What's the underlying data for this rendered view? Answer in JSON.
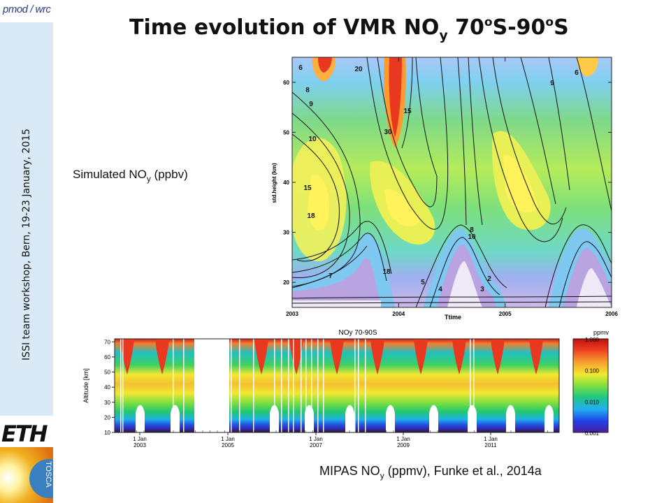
{
  "header": {
    "title_main": "Time evolution of VMR NO",
    "title_sub": "y",
    "title_after": " 70",
    "title_deg1": "o",
    "title_mid": "S-90",
    "title_deg2": "o",
    "title_end": "S"
  },
  "sidebar": {
    "logo_text": "pmod / wrc",
    "vertical_text": "ISSI team workshop, Bern, 19-23  January, 2015",
    "eth_logo": "ETH",
    "tosca_logo": "TOSCA"
  },
  "labels": {
    "simulated_main": "Simulated NO",
    "simulated_sub": "y",
    "simulated_end": " (ppbv)",
    "mipas_main": "MIPAS NO",
    "mipas_sub": "y",
    "mipas_end": " (ppmv), Funke et al., 2014a"
  },
  "colors": {
    "sidebar": "#d9e9f5",
    "contour_scale": [
      "#f2eef8",
      "#d9c9ec",
      "#b9a3e0",
      "#9fa8f2",
      "#8ed7f0",
      "#5fd7c9",
      "#4fd69c",
      "#6fe07a",
      "#a8ea5e",
      "#dcef4f",
      "#fff25a",
      "#ffc94a",
      "#ff8a30",
      "#e8381f",
      "#cc1111"
    ]
  },
  "chart_data": [
    {
      "type": "heatmap",
      "title": "",
      "xlabel": "Ttime",
      "ylabel": "std.height (km)",
      "x_ticks": [
        "2003",
        "2004",
        "2005",
        "2006"
      ],
      "xlim": [
        2003,
        2006
      ],
      "y_ticks": [
        20,
        30,
        40,
        50,
        60
      ],
      "ylim": [
        15,
        65
      ],
      "contour_labels": [
        "6",
        "8",
        "9",
        "10",
        "15",
        "18",
        "20",
        "30",
        "15",
        "18",
        "8",
        "10",
        "9",
        "6",
        "5",
        "4",
        "3",
        "2",
        "7"
      ],
      "notes": "Contours of simulated NOy (ppbv)"
    },
    {
      "type": "heatmap",
      "title": "NOy 70-90S",
      "xlabel": "",
      "ylabel": "Altitude [km]",
      "x_ticks": [
        "1 Jan\n2003",
        "1 Jan\n2005",
        "1 Jan\n2007",
        "1 Jan\n2009",
        "1 Jan\n2011"
      ],
      "y_ticks": [
        10,
        20,
        30,
        40,
        50,
        60,
        70
      ],
      "ylim": [
        10,
        72
      ],
      "colorbar": {
        "unit": "ppmv",
        "ticks": [
          "1.000",
          "0.100",
          "0.010",
          "0.001"
        ],
        "scale": "log"
      }
    }
  ]
}
